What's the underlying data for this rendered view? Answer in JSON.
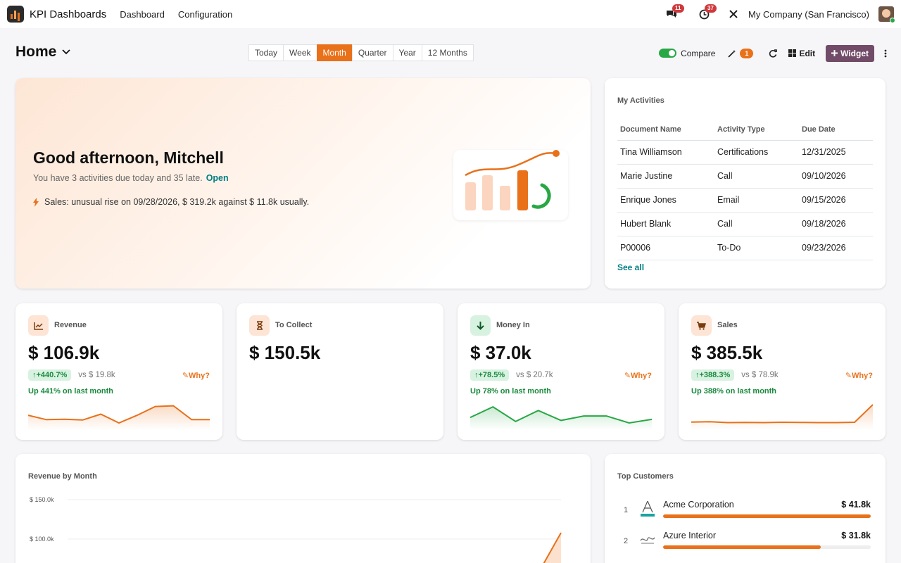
{
  "navbar": {
    "app_name": "KPI Dashboards",
    "menu": [
      "Dashboard",
      "Configuration"
    ],
    "messages_badge": "11",
    "activities_badge": "37",
    "company": "My Company (San Francisco)"
  },
  "toolbar": {
    "title": "Home",
    "periods": [
      "Today",
      "Week",
      "Month",
      "Quarter",
      "Year",
      "12 Months"
    ],
    "active_period": "Month",
    "compare_label": "Compare",
    "compare_enabled": true,
    "insights_count": "1",
    "edit_label": "Edit",
    "widget_label": "Widget"
  },
  "hero": {
    "greeting": "Good afternoon, Mitchell",
    "subtitle": "You have 3 activities due today and 35 late.",
    "open_link": "Open",
    "insight": "Sales: unusual rise on 09/28/2026, $ 319.2k against $ 11.8k usually."
  },
  "activities": {
    "title": "My Activities",
    "columns": [
      "Document Name",
      "Activity Type",
      "Due Date"
    ],
    "rows": [
      [
        "Tina Williamson",
        "Certifications",
        "12/31/2025"
      ],
      [
        "Marie Justine",
        "Call",
        "09/10/2026"
      ],
      [
        "Enrique Jones",
        "Email",
        "09/15/2026"
      ],
      [
        "Hubert Blank",
        "Call",
        "09/18/2026"
      ],
      [
        "P00006",
        "To-Do",
        "09/23/2026"
      ]
    ],
    "see_all": "See all"
  },
  "kpis": [
    {
      "title": "Revenue",
      "icon": "trend-chart-icon",
      "value": "$ 106.9k",
      "delta": "+440.7%",
      "vs": "vs $ 19.8k",
      "why": "Why?",
      "note": "Up 441% on last month",
      "color": "#e8711a",
      "spark": [
        0.42,
        0.18,
        0.2,
        0.16,
        0.48,
        0.0,
        0.42,
        0.9,
        0.94,
        0.18,
        0.18
      ]
    },
    {
      "title": "To Collect",
      "icon": "hourglass-icon",
      "value": "$ 150.5k"
    },
    {
      "title": "Money In",
      "icon": "arrow-down-icon",
      "value": "$ 37.0k",
      "delta": "+78.5%",
      "vs": "vs $ 20.7k",
      "why": "Why?",
      "note": "Up 78% on last month",
      "color": "#28a745",
      "spark": [
        0.3,
        0.88,
        0.08,
        0.68,
        0.14,
        0.38,
        0.38,
        0.0,
        0.2
      ]
    },
    {
      "title": "Sales",
      "icon": "cart-icon",
      "value": "$ 385.5k",
      "delta": "+388.3%",
      "vs": "vs $ 78.9k",
      "why": "Why?",
      "note": "Up 388% on last month",
      "color": "#e8711a",
      "spark": [
        0.05,
        0.07,
        0.02,
        0.03,
        0.02,
        0.04,
        0.03,
        0.02,
        0.02,
        0.04,
        1.0
      ]
    }
  ],
  "revenue_by_month": {
    "title": "Revenue by Month",
    "chart_data": {
      "type": "area",
      "title": "Revenue by Month",
      "y_ticks": [
        "$ 150.0k",
        "$ 100.0k"
      ],
      "values": [
        105
      ]
    }
  },
  "top_customers": {
    "title": "Top Customers",
    "items": [
      {
        "rank": "1",
        "name": "Acme Corporation",
        "value": "$ 41.8k",
        "share": 1.0,
        "logo": "acme-logo-icon"
      },
      {
        "rank": "2",
        "name": "Azure Interior",
        "value": "$ 31.8k",
        "share": 0.76,
        "logo": "azure-logo-icon"
      }
    ]
  }
}
